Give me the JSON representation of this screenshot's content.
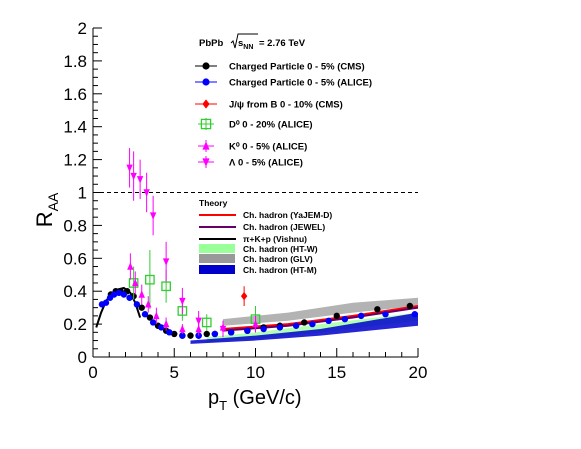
{
  "chart_data": {
    "type": "scatter",
    "header": {
      "system": "PbPb",
      "energy_label": "s",
      "energy_sub": "NN",
      "energy_value": "= 2.76 TeV"
    },
    "ylabel": {
      "main": "R",
      "sub": "AA"
    },
    "xlabel": {
      "main": "p",
      "sub": "T",
      "unit": " (GeV/c)"
    },
    "xlim": [
      0,
      20
    ],
    "ylim": [
      0,
      2
    ],
    "xticks": [
      0,
      5,
      10,
      15,
      20
    ],
    "xtick_labels": [
      "0",
      "5",
      "10",
      "15",
      "20"
    ],
    "yticks": [
      0,
      0.2,
      0.4,
      0.6,
      0.8,
      1,
      1.2,
      1.4,
      1.6,
      1.8,
      2
    ],
    "ytick_labels": [
      "0",
      "0.2",
      "0.4",
      "0.6",
      "0.8",
      "1",
      "1.2",
      "1.4",
      "1.6",
      "1.8",
      "2"
    ],
    "reference_line": {
      "y": 1,
      "style": "dashed"
    },
    "series": [
      {
        "name": "Charged Particle 0 - 5% (CMS)",
        "marker": "circle",
        "color": "#000000",
        "points": [
          [
            1.1,
            0.38
          ],
          [
            1.4,
            0.4
          ],
          [
            1.7,
            0.4
          ],
          [
            2.1,
            0.4
          ],
          [
            2.5,
            0.37
          ],
          [
            3.0,
            0.3
          ],
          [
            3.5,
            0.24
          ],
          [
            4.0,
            0.19
          ],
          [
            4.5,
            0.16
          ],
          [
            5.0,
            0.14
          ],
          [
            5.5,
            0.13
          ],
          [
            6.0,
            0.13
          ],
          [
            6.5,
            0.13
          ],
          [
            7.0,
            0.14
          ],
          [
            7.5,
            0.14
          ],
          [
            8.5,
            0.15
          ],
          [
            9.5,
            0.16
          ],
          [
            10.5,
            0.18
          ],
          [
            11.5,
            0.19
          ],
          [
            13.0,
            0.21
          ],
          [
            15.0,
            0.25
          ],
          [
            17.5,
            0.29
          ],
          [
            19.5,
            0.31
          ]
        ]
      },
      {
        "name": "Charged Particle 0 - 5% (ALICE)",
        "marker": "circle",
        "color": "#0000ff",
        "points": [
          [
            0.55,
            0.32
          ],
          [
            0.8,
            0.33
          ],
          [
            1.05,
            0.36
          ],
          [
            1.3,
            0.38
          ],
          [
            1.6,
            0.39
          ],
          [
            1.9,
            0.38
          ],
          [
            2.25,
            0.36
          ],
          [
            2.7,
            0.32
          ],
          [
            3.2,
            0.26
          ],
          [
            3.7,
            0.21
          ],
          [
            4.2,
            0.18
          ],
          [
            4.7,
            0.15
          ],
          [
            5.5,
            0.13
          ],
          [
            6.5,
            0.13
          ],
          [
            7.5,
            0.14
          ],
          [
            8.5,
            0.15
          ],
          [
            9.5,
            0.16
          ],
          [
            10.5,
            0.17
          ],
          [
            11.5,
            0.18
          ],
          [
            12.5,
            0.19
          ],
          [
            13.5,
            0.2
          ],
          [
            14.5,
            0.22
          ],
          [
            15.5,
            0.23
          ],
          [
            16.5,
            0.25
          ],
          [
            18.0,
            0.26
          ],
          [
            19.8,
            0.26
          ]
        ]
      },
      {
        "name": "J/ψ from B 0 - 10% (CMS)",
        "marker": "diamond",
        "color": "#ff0000",
        "points": [
          [
            9.3,
            0.37
          ]
        ],
        "errors": [
          0.06
        ]
      },
      {
        "name": "D⁰  0 - 20% (ALICE)",
        "marker": "open-square",
        "color": "#33cc33",
        "points": [
          [
            2.5,
            0.45
          ],
          [
            3.5,
            0.47
          ],
          [
            4.5,
            0.43
          ],
          [
            5.5,
            0.28
          ],
          [
            7.0,
            0.21
          ],
          [
            10.0,
            0.23
          ]
        ],
        "errors": [
          0.1,
          0.18,
          0.1,
          0.06,
          0.05,
          0.08
        ]
      },
      {
        "name": "K⁰  0 - 5% (ALICE)",
        "marker": "triangle-up",
        "color": "#ff00ff",
        "points": [
          [
            2.3,
            0.55
          ],
          [
            2.6,
            0.45
          ],
          [
            3.0,
            0.38
          ],
          [
            3.4,
            0.32
          ],
          [
            3.9,
            0.25
          ],
          [
            4.5,
            0.2
          ],
          [
            5.5,
            0.17
          ],
          [
            6.5,
            0.17
          ],
          [
            8.0,
            0.18
          ],
          [
            10.0,
            0.2
          ]
        ],
        "errors": [
          0.08,
          0.07,
          0.06,
          0.05,
          0.05,
          0.04,
          0.03,
          0.04,
          0.04,
          0.05
        ]
      },
      {
        "name": "Λ  0 - 5% (ALICE)",
        "marker": "triangle-down",
        "color": "#ff00ff",
        "points": [
          [
            2.25,
            1.15
          ],
          [
            2.5,
            1.1
          ],
          [
            2.9,
            1.08
          ],
          [
            3.3,
            1.0
          ],
          [
            3.7,
            0.86
          ],
          [
            4.5,
            0.58
          ],
          [
            5.5,
            0.34
          ],
          [
            6.5,
            0.22
          ],
          [
            8.0,
            0.17
          ]
        ],
        "errors": [
          0.12,
          0.15,
          0.12,
          0.12,
          0.12,
          0.12,
          0.08,
          0.06,
          0.05
        ]
      }
    ],
    "theory": {
      "title": "Theory",
      "models": [
        {
          "name": "Ch. hadron (YaJEM-D)",
          "style": "line",
          "color": "#ff0000",
          "points": [
            [
              8,
              0.17
            ],
            [
              12,
              0.2
            ],
            [
              16,
              0.25
            ],
            [
              20,
              0.31
            ]
          ]
        },
        {
          "name": "Ch. hadron (JEWEL)",
          "style": "line",
          "color": "#660066",
          "points": [
            [
              8,
              0.16
            ],
            [
              12,
              0.19
            ],
            [
              16,
              0.24
            ],
            [
              20,
              0.3
            ]
          ]
        },
        {
          "name": "π+K+p (Vishnu)",
          "style": "line",
          "color": "#000000",
          "points": [
            [
              0.2,
              0.18
            ],
            [
              0.5,
              0.27
            ],
            [
              0.8,
              0.34
            ],
            [
              1.1,
              0.38
            ],
            [
              1.5,
              0.41
            ],
            [
              1.9,
              0.42
            ],
            [
              2.3,
              0.39
            ],
            [
              2.6,
              0.33
            ],
            [
              2.9,
              0.24
            ]
          ]
        },
        {
          "name": "Ch. hadron (HT-W)",
          "style": "band",
          "color": "#99ff99",
          "lower": [
            [
              7,
              0.09
            ],
            [
              10,
              0.11
            ],
            [
              14,
              0.15
            ],
            [
              20,
              0.22
            ]
          ],
          "upper": [
            [
              7,
              0.12
            ],
            [
              10,
              0.15
            ],
            [
              14,
              0.2
            ],
            [
              20,
              0.27
            ]
          ]
        },
        {
          "name": "Ch. hadron (GLV)",
          "style": "band",
          "color": "#999999",
          "lower": [
            [
              8,
              0.19
            ],
            [
              12,
              0.22
            ],
            [
              16,
              0.27
            ],
            [
              20,
              0.31
            ]
          ],
          "upper": [
            [
              8,
              0.23
            ],
            [
              12,
              0.27
            ],
            [
              16,
              0.33
            ],
            [
              20,
              0.36
            ]
          ]
        },
        {
          "name": "Ch. hadron (HT-M)",
          "style": "band",
          "color": "#0000cc",
          "lower": [
            [
              6,
              0.08
            ],
            [
              10,
              0.1
            ],
            [
              14,
              0.13
            ],
            [
              20,
              0.19
            ]
          ],
          "upper": [
            [
              6,
              0.1
            ],
            [
              10,
              0.13
            ],
            [
              14,
              0.17
            ],
            [
              20,
              0.27
            ]
          ]
        }
      ]
    }
  }
}
